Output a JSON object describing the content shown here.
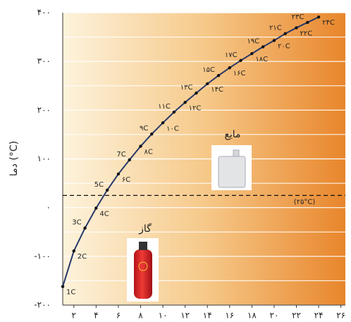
{
  "chart_data": {
    "type": "line",
    "y_label": "دما (°C)",
    "x": [
      1,
      2,
      3,
      4,
      5,
      6,
      7,
      8,
      9,
      10,
      11,
      12,
      13,
      14,
      15,
      16,
      17,
      18,
      19,
      20,
      21,
      22,
      23,
      24
    ],
    "series": [
      {
        "color": "#27386b",
        "values": [
          -162,
          -89,
          -42,
          -1,
          36,
          69,
          98,
          126,
          151,
          174,
          196,
          216,
          235,
          254,
          271,
          287,
          302,
          316,
          330,
          343,
          357,
          369,
          380,
          391
        ],
        "point_labels": [
          "1C",
          "2C",
          "3C",
          "4C",
          "5C",
          "۶C",
          "7C",
          "۸C",
          "۹C",
          "۱۰C",
          "۱۱C",
          "۱۲C",
          "۱۳C",
          "۱۴C",
          "۱۵C",
          "۱۶C",
          "۱۷C",
          "۱۸C",
          "۱۹C",
          "۲۰C",
          "۲۱C",
          "۲۲C",
          "۲۳C",
          "۲۴C"
        ]
      }
    ],
    "xlim": [
      1,
      26.4
    ],
    "xticks": [
      {
        "value": 2,
        "label": "۲"
      },
      {
        "value": 4,
        "label": "۴"
      },
      {
        "value": 6,
        "label": "۶"
      },
      {
        "value": 8,
        "label": "۸"
      },
      {
        "value": 10,
        "label": "۱۰"
      },
      {
        "value": 12,
        "label": "۱۲"
      },
      {
        "value": 14,
        "label": "۱۴"
      },
      {
        "value": 16,
        "label": "۱۶"
      },
      {
        "value": 18,
        "label": "۱۸"
      },
      {
        "value": 20,
        "label": "۲۰"
      },
      {
        "value": 22,
        "label": "۲۲"
      },
      {
        "value": 24,
        "label": "۲۴"
      },
      {
        "value": 26,
        "label": "۲۶"
      }
    ],
    "ylim": [
      -200,
      400
    ],
    "yticks": [
      {
        "value": -200,
        "label": "-۲۰۰"
      },
      {
        "value": -100,
        "label": "-۱۰۰"
      },
      {
        "value": 0,
        "label": "۰"
      },
      {
        "value": 100,
        "label": "۱۰۰"
      },
      {
        "value": 200,
        "label": "۲۰۰"
      },
      {
        "value": 300,
        "label": "۳۰۰"
      },
      {
        "value": 400,
        "label": "۴۰۰"
      }
    ],
    "minor_yticks": [
      -150,
      -50,
      50,
      150,
      250,
      350
    ],
    "grid": true,
    "reference_line": {
      "value": 25,
      "label": "(۲۵°C)"
    },
    "annotations": {
      "liquid": "مایع",
      "gas": "گاز"
    }
  }
}
